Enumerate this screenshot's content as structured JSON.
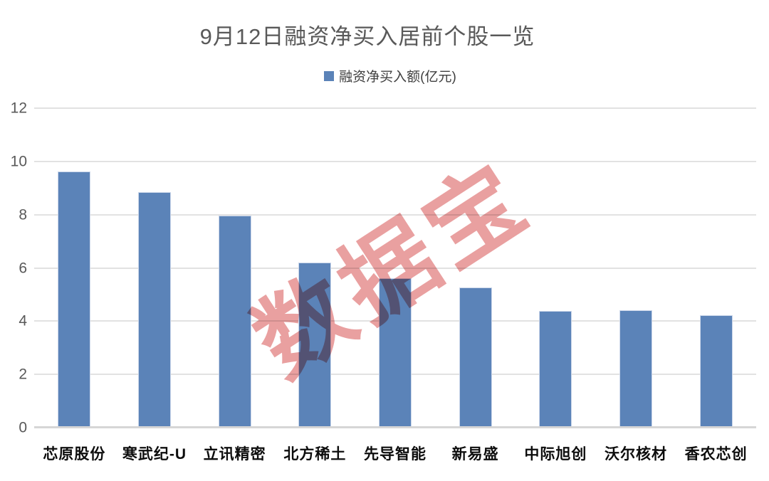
{
  "title": "9月12日融资净买入居前个股一览",
  "legend": {
    "label": "融资净买入额(亿元)",
    "marker_color": "#5b83b8"
  },
  "watermark": {
    "text": "数据宝",
    "color": "#e9a0a0",
    "rotation_deg": -33
  },
  "colors": {
    "bar": "#5b83b8",
    "bar_border": "#ccd7ea",
    "gridline": "#e2e2e2",
    "axis_line": "#d6d6d6",
    "title_text": "#595959",
    "ytick_text": "#595959",
    "xtick_text": "#0d0d0d"
  },
  "chart_data": {
    "type": "bar",
    "title": "9月12日融资净买入居前个股一览",
    "series_name": "融资净买入额(亿元)",
    "categories": [
      "芯原股份",
      "寒武纪-U",
      "立讯精密",
      "北方稀土",
      "先导智能",
      "新易盛",
      "中际旭创",
      "沃尔核材",
      "香农芯创"
    ],
    "values": [
      9.62,
      8.85,
      7.97,
      6.19,
      5.62,
      5.27,
      4.38,
      4.41,
      4.23
    ],
    "xlabel": "",
    "ylabel": "",
    "ylim": [
      0,
      12
    ],
    "yticks": [
      0,
      2,
      4,
      6,
      8,
      10,
      12
    ],
    "grid": true,
    "legend_position": "top"
  }
}
